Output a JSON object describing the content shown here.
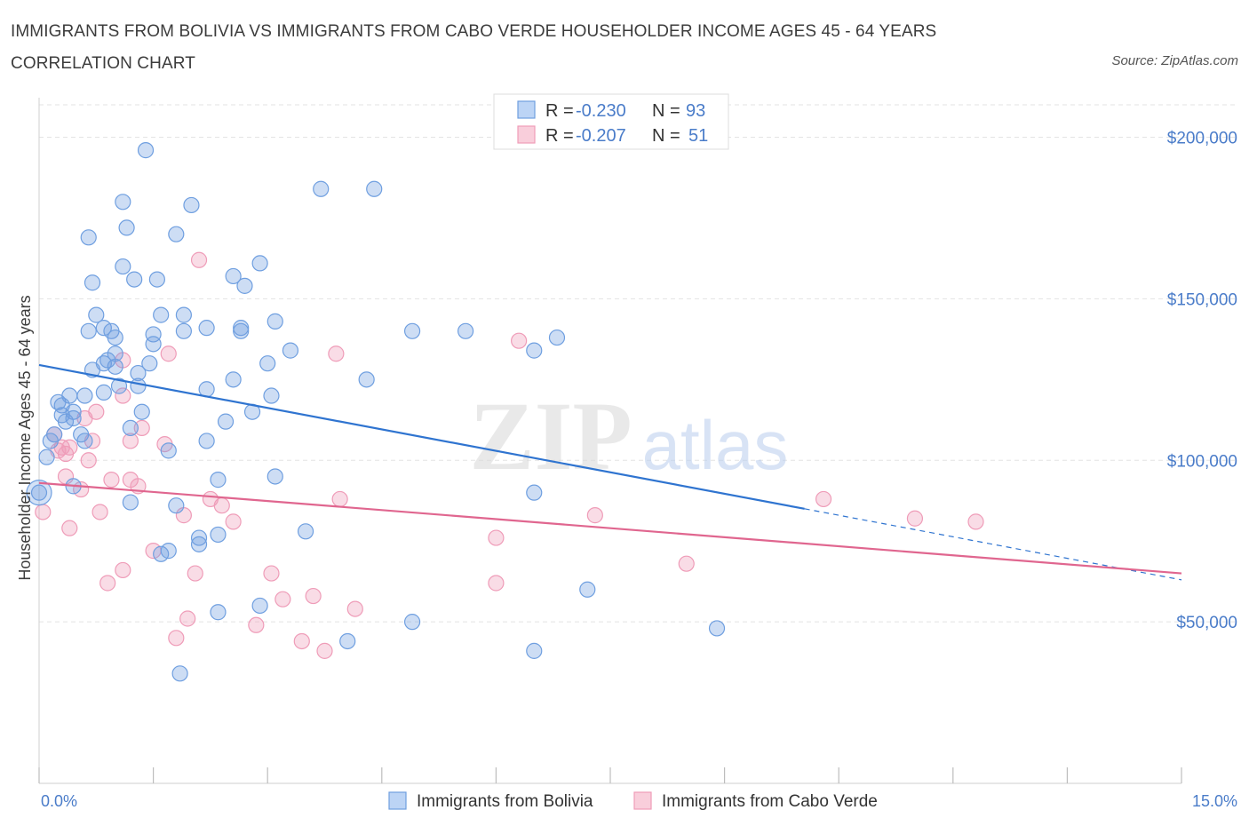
{
  "title": "IMMIGRANTS FROM BOLIVIA VS IMMIGRANTS FROM CABO VERDE HOUSEHOLDER INCOME AGES 45 - 64 YEARS CORRELATION CHART",
  "source": "Source: ZipAtlas.com",
  "colors": {
    "bolivia": "#6f9fe0",
    "bolivia_line": "#2f74d0",
    "caboverde": "#ef9cb8",
    "caboverde_line": "#e0668f",
    "axis_text": "#4a7cc9",
    "grid": "#e3e3e3"
  },
  "legend": {
    "rows": [
      {
        "r_label": "R = ",
        "r_value": "-0.230",
        "n_label": "N = ",
        "n_value": "93"
      },
      {
        "r_label": "R = ",
        "r_value": "-0.207",
        "n_label": "N = ",
        "n_value": "51"
      }
    ]
  },
  "chart_data": {
    "type": "scatter",
    "xlabel": "",
    "ylabel": "Householder Income Ages 45 - 64 years",
    "xlim": [
      0,
      15
    ],
    "ylim": [
      0,
      215000
    ],
    "x_tick_labels": [
      "0.0%",
      "15.0%"
    ],
    "y_ticks": [
      50000,
      100000,
      150000,
      200000
    ],
    "y_tick_labels": [
      "$50,000",
      "$100,000",
      "$150,000",
      "$200,000"
    ],
    "grid": true,
    "watermark": "ZIPatlas",
    "legend_position": "bottom",
    "series": [
      {
        "name": "Immigrants from Bolivia",
        "points": [
          [
            1.4,
            196000
          ],
          [
            1.1,
            180000
          ],
          [
            2.0,
            179000
          ],
          [
            3.7,
            184000
          ],
          [
            4.4,
            184000
          ],
          [
            1.15,
            172000
          ],
          [
            0.65,
            169000
          ],
          [
            1.8,
            170000
          ],
          [
            2.9,
            161000
          ],
          [
            1.1,
            160000
          ],
          [
            2.55,
            157000
          ],
          [
            1.25,
            156000
          ],
          [
            1.55,
            156000
          ],
          [
            0.7,
            155000
          ],
          [
            2.7,
            154000
          ],
          [
            0.75,
            145000
          ],
          [
            1.6,
            145000
          ],
          [
            1.9,
            145000
          ],
          [
            3.1,
            143000
          ],
          [
            0.85,
            141000
          ],
          [
            2.2,
            141000
          ],
          [
            2.65,
            141000
          ],
          [
            0.65,
            140000
          ],
          [
            0.95,
            140000
          ],
          [
            1.5,
            139000
          ],
          [
            1.9,
            140000
          ],
          [
            4.9,
            140000
          ],
          [
            5.6,
            140000
          ],
          [
            2.65,
            140000
          ],
          [
            1.0,
            138000
          ],
          [
            6.8,
            138000
          ],
          [
            1.5,
            136000
          ],
          [
            3.3,
            134000
          ],
          [
            6.5,
            134000
          ],
          [
            1.0,
            133000
          ],
          [
            0.85,
            130000
          ],
          [
            1.45,
            130000
          ],
          [
            3.0,
            130000
          ],
          [
            0.7,
            128000
          ],
          [
            1.0,
            129000
          ],
          [
            1.3,
            127000
          ],
          [
            4.3,
            125000
          ],
          [
            2.55,
            125000
          ],
          [
            1.05,
            123000
          ],
          [
            1.3,
            123000
          ],
          [
            2.2,
            122000
          ],
          [
            0.85,
            121000
          ],
          [
            0.4,
            120000
          ],
          [
            3.05,
            120000
          ],
          [
            0.25,
            118000
          ],
          [
            0.3,
            117000
          ],
          [
            0.45,
            115000
          ],
          [
            0.3,
            114000
          ],
          [
            1.35,
            115000
          ],
          [
            2.8,
            115000
          ],
          [
            0.35,
            112000
          ],
          [
            0.45,
            113000
          ],
          [
            2.45,
            112000
          ],
          [
            0.2,
            108000
          ],
          [
            0.55,
            108000
          ],
          [
            0.15,
            106000
          ],
          [
            0.6,
            106000
          ],
          [
            2.2,
            106000
          ],
          [
            1.7,
            103000
          ],
          [
            0.1,
            101000
          ],
          [
            0.45,
            92000
          ],
          [
            0.0,
            90000
          ],
          [
            2.35,
            94000
          ],
          [
            3.1,
            95000
          ],
          [
            1.2,
            87000
          ],
          [
            1.8,
            86000
          ],
          [
            6.5,
            90000
          ],
          [
            3.5,
            78000
          ],
          [
            2.1,
            76000
          ],
          [
            2.35,
            77000
          ],
          [
            2.1,
            74000
          ],
          [
            1.6,
            71000
          ],
          [
            1.7,
            72000
          ],
          [
            7.2,
            60000
          ],
          [
            2.9,
            55000
          ],
          [
            2.35,
            53000
          ],
          [
            4.9,
            50000
          ],
          [
            8.9,
            48000
          ],
          [
            4.05,
            44000
          ],
          [
            6.5,
            41000
          ],
          [
            1.85,
            34000
          ],
          [
            0.9,
            131000
          ],
          [
            0.6,
            120000
          ],
          [
            1.2,
            110000
          ]
        ]
      },
      {
        "name": "Immigrants from Cabo Verde",
        "points": [
          [
            2.1,
            162000
          ],
          [
            6.3,
            137000
          ],
          [
            3.9,
            133000
          ],
          [
            1.7,
            133000
          ],
          [
            1.1,
            131000
          ],
          [
            1.1,
            120000
          ],
          [
            0.75,
            115000
          ],
          [
            0.6,
            113000
          ],
          [
            1.35,
            110000
          ],
          [
            0.2,
            108000
          ],
          [
            0.3,
            104000
          ],
          [
            0.4,
            104000
          ],
          [
            1.2,
            106000
          ],
          [
            0.7,
            106000
          ],
          [
            1.65,
            105000
          ],
          [
            0.35,
            102000
          ],
          [
            0.65,
            100000
          ],
          [
            0.35,
            95000
          ],
          [
            0.95,
            94000
          ],
          [
            1.2,
            94000
          ],
          [
            0.55,
            91000
          ],
          [
            1.3,
            92000
          ],
          [
            2.25,
            88000
          ],
          [
            3.95,
            88000
          ],
          [
            2.4,
            86000
          ],
          [
            10.3,
            88000
          ],
          [
            0.05,
            84000
          ],
          [
            0.8,
            84000
          ],
          [
            1.9,
            83000
          ],
          [
            7.3,
            83000
          ],
          [
            11.5,
            82000
          ],
          [
            12.3,
            81000
          ],
          [
            2.55,
            81000
          ],
          [
            0.4,
            79000
          ],
          [
            6.0,
            76000
          ],
          [
            1.5,
            72000
          ],
          [
            8.5,
            68000
          ],
          [
            1.1,
            66000
          ],
          [
            2.05,
            65000
          ],
          [
            3.05,
            65000
          ],
          [
            0.9,
            62000
          ],
          [
            6.0,
            62000
          ],
          [
            3.6,
            58000
          ],
          [
            3.2,
            57000
          ],
          [
            4.15,
            54000
          ],
          [
            1.95,
            51000
          ],
          [
            2.85,
            49000
          ],
          [
            1.8,
            45000
          ],
          [
            3.45,
            44000
          ],
          [
            3.75,
            41000
          ],
          [
            0.25,
            103000
          ]
        ]
      }
    ],
    "trendlines": [
      {
        "series": "Immigrants from Bolivia",
        "x": [
          0,
          10.05
        ],
        "y": [
          129500,
          85000
        ],
        "dashed_extension_to": [
          15,
          63000
        ]
      },
      {
        "series": "Immigrants from Cabo Verde",
        "x": [
          0,
          15
        ],
        "y": [
          93000,
          65000
        ]
      }
    ]
  }
}
